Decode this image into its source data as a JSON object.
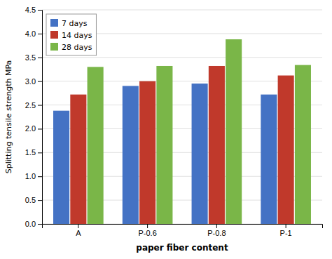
{
  "chart_data": {
    "type": "bar",
    "categories": [
      "A",
      "P-0.6",
      "P-0.8",
      "P-1"
    ],
    "series": [
      {
        "name": "7 days",
        "color": "#4472c4",
        "values": [
          2.38,
          2.9,
          2.95,
          2.72
        ]
      },
      {
        "name": "14 days",
        "color": "#c0392b",
        "values": [
          2.72,
          3.0,
          3.32,
          3.12
        ]
      },
      {
        "name": "28 days",
        "color": "#7ab648",
        "values": [
          3.3,
          3.32,
          3.88,
          3.34
        ]
      }
    ],
    "xlabel": "paper fiber content",
    "ylabel": "Splitting tensile strength MPa",
    "ylim": [
      0,
      4.5
    ],
    "yticks": [
      {
        "value": 0,
        "label": "0.0"
      },
      0.5,
      {
        "value": 1.0,
        "label": "1.0"
      },
      1.5,
      {
        "value": 2.0,
        "label": "2.0"
      },
      2.5,
      {
        "value": 3.0,
        "label": "3.0"
      },
      3.5,
      {
        "value": 4.0,
        "label": "4.0"
      },
      4.5
    ],
    "grid": true,
    "legend": "upper left"
  }
}
